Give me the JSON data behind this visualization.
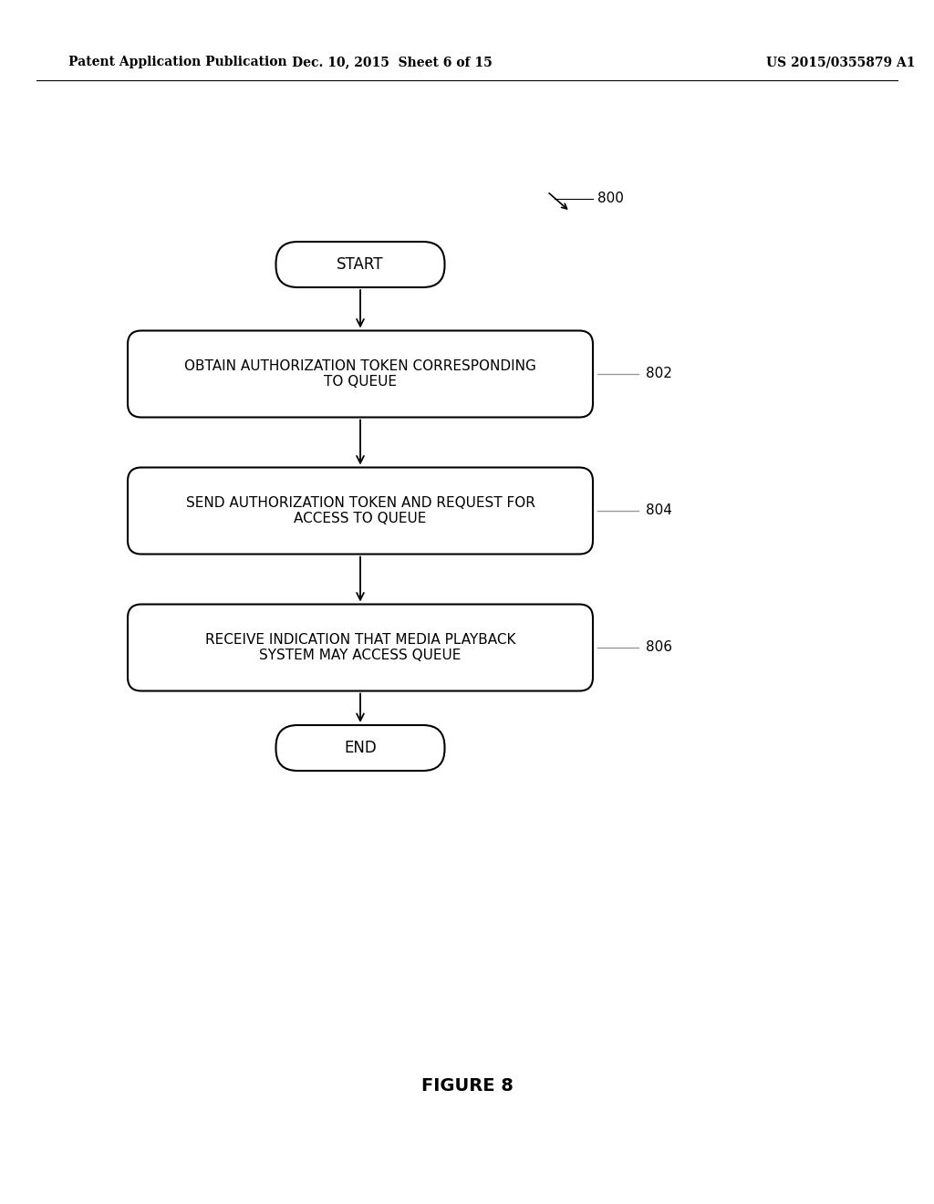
{
  "bg_color": "#ffffff",
  "header_left": "Patent Application Publication",
  "header_mid": "Dec. 10, 2015  Sheet 6 of 15",
  "header_right": "US 2015/0355879 A1",
  "figure_label": "FIGURE 8",
  "diagram_ref": "800",
  "start_label": "START",
  "box1_label": "OBTAIN AUTHORIZATION TOKEN CORRESPONDING\nTO QUEUE",
  "box1_ref": "802",
  "box2_label": "SEND AUTHORIZATION TOKEN AND REQUEST FOR\nACCESS TO QUEUE",
  "box2_ref": "804",
  "box3_label": "RECEIVE INDICATION THAT MEDIA PLAYBACK\nSYSTEM MAY ACCESS QUEUE",
  "box3_ref": "806",
  "end_label": "END",
  "text_color": "#000000",
  "font_size_box": 11,
  "font_size_terminal": 12,
  "font_size_header": 10,
  "font_size_ref": 11,
  "font_size_figure": 14
}
